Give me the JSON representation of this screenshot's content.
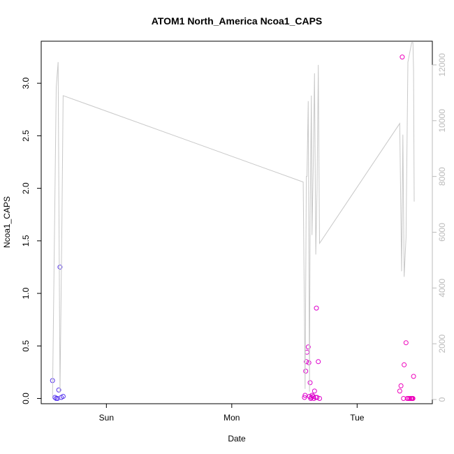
{
  "chart_data": {
    "type": "scatter",
    "title": "ATOM1 North_America Ncoa1_CAPS",
    "xlabel": "Date",
    "ylabel": "Ncoa1_CAPS",
    "x_ticks": [
      {
        "x": 0.5,
        "label": "Sun"
      },
      {
        "x": 1.5,
        "label": "Mon"
      },
      {
        "x": 2.5,
        "label": "Tue"
      }
    ],
    "xlim": [
      -0.02,
      3.1
    ],
    "ylim": [
      -0.05,
      3.4
    ],
    "y_ticks": [
      0.0,
      0.5,
      1.0,
      1.5,
      2.0,
      2.5,
      3.0
    ],
    "y2lim": [
      -150,
      12850
    ],
    "y2_ticks": [
      0,
      2000,
      4000,
      6000,
      8000,
      10000,
      12000
    ],
    "series": [
      {
        "kind": "points",
        "color": "#5533ee",
        "x": [
          0.07,
          0.09,
          0.1,
          0.11,
          0.12,
          0.13,
          0.14,
          0.155
        ],
        "y": [
          0.17,
          0.01,
          0.0,
          0.0,
          0.08,
          1.25,
          0.01,
          0.02
        ]
      },
      {
        "kind": "points",
        "color": "#dd00cc",
        "x": [
          2.08,
          2.085,
          2.09,
          2.095,
          2.1,
          2.11,
          2.115,
          2.12,
          2.125,
          2.13,
          2.135,
          2.14,
          2.15,
          2.155,
          2.16,
          2.17,
          2.175,
          2.18,
          2.19,
          2.2
        ],
        "y": [
          0.01,
          0.03,
          0.26,
          0.35,
          0.44,
          0.49,
          0.34,
          0.02,
          0.15,
          0.0,
          0.01,
          0.03,
          0.02,
          0.0,
          0.07,
          0.01,
          0.86,
          0.01,
          0.35,
          0.0
        ]
      },
      {
        "kind": "points",
        "color": "#ee00bb",
        "x": [
          2.84,
          2.85,
          2.86,
          2.87,
          2.875,
          2.89,
          2.9,
          2.91,
          2.92,
          2.93,
          2.935,
          2.94,
          2.945,
          2.95
        ],
        "y": [
          0.07,
          0.12,
          3.25,
          0.0,
          0.32,
          0.53,
          0.0,
          0.0,
          0.0,
          0.0,
          0.0,
          0.0,
          0.0,
          0.21
        ]
      },
      {
        "kind": "line",
        "axis": "right",
        "color": "#c8c8c8",
        "x": [
          0.07,
          0.1,
          0.115,
          0.13,
          0.145,
          0.155,
          2.07,
          2.085,
          2.095,
          2.1,
          2.11,
          2.12,
          2.125,
          2.135,
          2.14,
          2.15,
          2.16,
          2.17,
          2.18,
          2.19,
          2.2,
          2.84,
          2.855,
          2.865,
          2.875,
          2.89,
          2.905,
          2.935,
          2.945,
          2.95,
          2.955
        ],
        "y": [
          100,
          11200,
          12100,
          250,
          6200,
          10900,
          7800,
          380,
          8000,
          8000,
          10700,
          280,
          6500,
          10900,
          5900,
          8400,
          11700,
          5200,
          7500,
          12000,
          5600,
          9900,
          4600,
          9500,
          4400,
          5800,
          12100,
          12800,
          12800,
          11800,
          7100
        ]
      }
    ]
  }
}
